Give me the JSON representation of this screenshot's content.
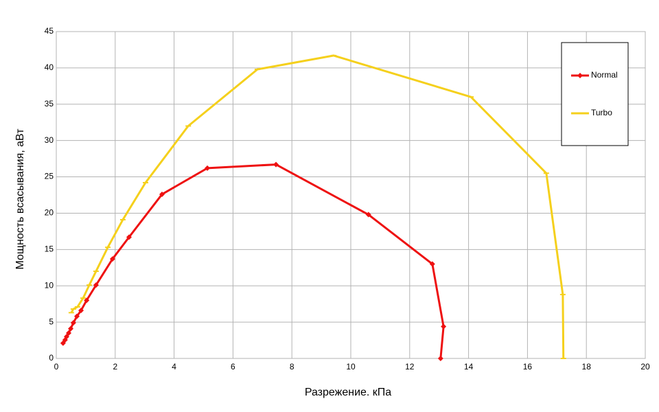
{
  "chart_data": {
    "type": "line",
    "x_label": "Разрежение. кПа",
    "y_label": "Мощность всасывания, аВт",
    "xlim": [
      0,
      20
    ],
    "xticks": [
      0,
      2,
      4,
      6,
      8,
      10,
      12,
      14,
      16,
      18,
      20
    ],
    "ylim": [
      0,
      45
    ],
    "yticks": [
      0,
      5,
      10,
      15,
      20,
      25,
      30,
      35,
      40,
      45
    ],
    "grid": true,
    "legend": "upper right",
    "series": [
      {
        "name": "Normal",
        "color": "#ee1111",
        "marker": "diamond",
        "x": [
          0.23,
          0.3,
          0.35,
          0.42,
          0.49,
          0.58,
          0.7,
          0.84,
          1.03,
          1.35,
          1.91,
          2.47,
          3.59,
          5.13,
          7.46,
          10.6,
          12.77,
          13.15,
          13.05
        ],
        "values": [
          2.1,
          2.55,
          3.0,
          3.5,
          4.1,
          4.9,
          5.8,
          6.6,
          8.0,
          10.1,
          13.7,
          16.7,
          22.6,
          26.2,
          26.7,
          19.8,
          13.0,
          4.4,
          0
        ]
      },
      {
        "name": "Turbo",
        "color": "#f5d01c",
        "marker": "dash",
        "x": [
          0.51,
          0.58,
          0.72,
          0.91,
          1.12,
          1.35,
          1.75,
          2.26,
          3.03,
          4.48,
          6.83,
          9.42,
          14.08,
          16.64,
          17.2,
          17.22
        ],
        "values": [
          6.3,
          6.8,
          7.1,
          8.3,
          10.1,
          12.0,
          15.3,
          19.1,
          24.2,
          32.0,
          39.8,
          41.7,
          36.0,
          25.5,
          8.8,
          0
        ]
      }
    ]
  }
}
